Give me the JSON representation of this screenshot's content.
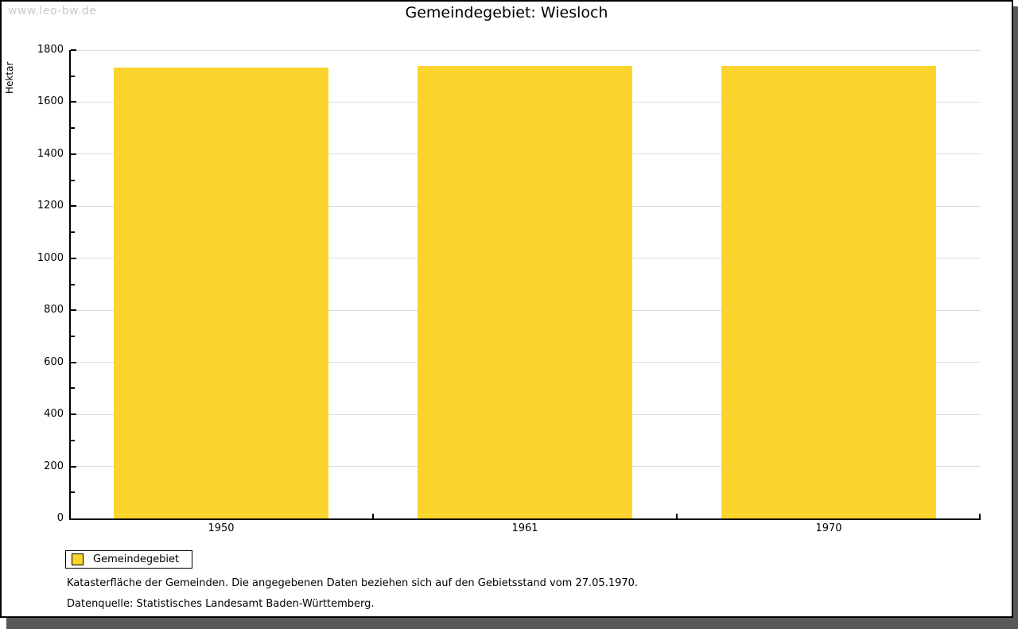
{
  "watermark": "www.leo-bw.de",
  "title": "Gemeindegebiet: Wiesloch",
  "chart_data": {
    "type": "bar",
    "title": "Gemeindegebiet: Wiesloch",
    "categories": [
      "1950",
      "1961",
      "1970"
    ],
    "series": [
      {
        "name": "Gemeindegebiet",
        "values": [
          1733,
          1739,
          1739
        ]
      }
    ],
    "xlabel": "",
    "ylabel": "Hektar",
    "ylim": [
      0,
      1800
    ],
    "y_major_step": 200,
    "y_minor_step": 100,
    "grid": true,
    "legend_position": "bottom-left",
    "bar_color": "#FBD42D",
    "grid_color": "#DCDCDC",
    "axis_color": "#000000"
  },
  "legend": {
    "items": [
      {
        "label": "Gemeindegebiet",
        "color": "#FBD42D"
      }
    ]
  },
  "footnotes": [
    "Katasterfläche der Gemeinden. Die angegebenen Daten beziehen sich auf den Gebietsstand vom 27.05.1970.",
    "Datenquelle: Statistisches Landesamt Baden-Württemberg."
  ],
  "colors": {
    "shadow": "#595959",
    "watermark": "#C9C9C9",
    "background": "#FFFFFF"
  }
}
